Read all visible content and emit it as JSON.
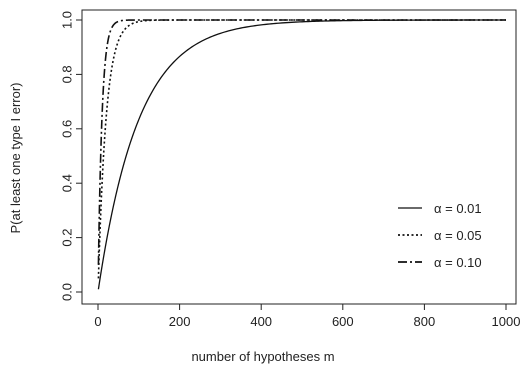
{
  "chart_data": {
    "type": "line",
    "title": "",
    "xlabel": "number of hypotheses m",
    "ylabel": "P(at least one type I error)",
    "xlim": [
      0,
      1000
    ],
    "ylim": [
      0,
      1.0
    ],
    "xticks": [
      "0",
      "200",
      "400",
      "600",
      "800",
      "1000"
    ],
    "yticks": [
      "0.0",
      "0.2",
      "0.4",
      "0.6",
      "0.8",
      "1.0"
    ],
    "grid": false,
    "legend_position": "bottom-right",
    "function": "1 - (1 - alpha)^m",
    "series": [
      {
        "name": "α = 0.01",
        "alpha": 0.01,
        "line_style": "solid",
        "x": [
          1,
          10,
          25,
          50,
          75,
          100,
          150,
          200,
          250,
          300,
          400,
          500,
          600,
          800,
          1000
        ],
        "values": [
          0.01,
          0.096,
          0.222,
          0.395,
          0.529,
          0.634,
          0.779,
          0.866,
          0.919,
          0.951,
          0.982,
          0.993,
          0.998,
          1.0,
          1.0
        ]
      },
      {
        "name": "α = 0.05",
        "alpha": 0.05,
        "line_style": "dotted",
        "x": [
          1,
          5,
          10,
          15,
          20,
          30,
          40,
          50,
          60,
          80,
          100,
          150,
          1000
        ],
        "values": [
          0.05,
          0.226,
          0.401,
          0.537,
          0.642,
          0.785,
          0.871,
          0.923,
          0.954,
          0.983,
          0.994,
          1.0,
          1.0
        ]
      },
      {
        "name": "α = 0.10",
        "alpha": 0.1,
        "line_style": "dashed",
        "x": [
          1,
          5,
          10,
          15,
          20,
          30,
          40,
          50,
          75,
          1000
        ],
        "values": [
          0.1,
          0.41,
          0.651,
          0.794,
          0.878,
          0.958,
          0.985,
          0.995,
          1.0,
          1.0
        ]
      }
    ]
  }
}
